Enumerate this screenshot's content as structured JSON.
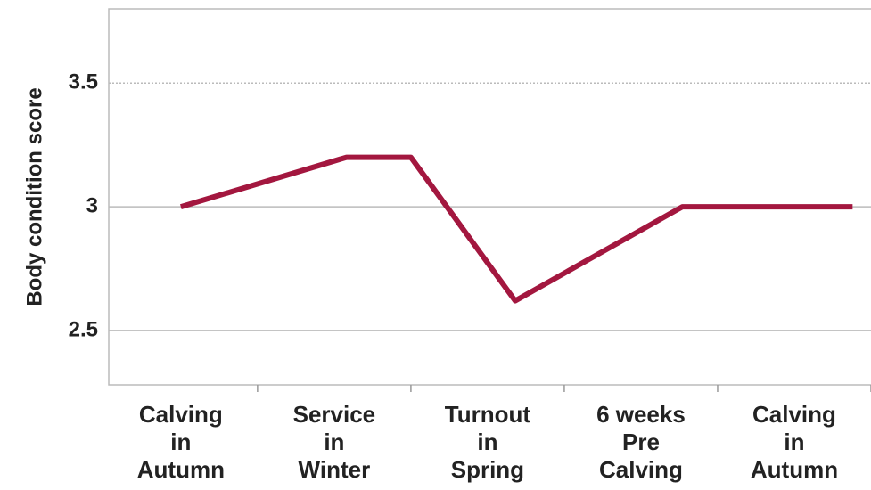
{
  "chart_data": {
    "type": "line",
    "y_label": "Body condition score",
    "x": [
      0,
      1.08,
      1.5,
      2.18,
      3.27,
      4.38
    ],
    "series": [
      {
        "color": "#a3173f",
        "values": [
          3.0,
          3.2,
          3.2,
          2.62,
          3.0,
          3.0
        ]
      }
    ],
    "xlim": [
      -0.47,
      4.5
    ],
    "xticks": [
      {
        "value": 0,
        "label": [
          "Calving",
          "in",
          "Autumn"
        ]
      },
      {
        "value": 1,
        "label": [
          "Service",
          "in",
          "Winter"
        ]
      },
      {
        "value": 2,
        "label": [
          "Turnout",
          "in",
          "Spring"
        ]
      },
      {
        "value": 3,
        "label": [
          "6 weeks",
          "Pre",
          "Calving"
        ]
      },
      {
        "value": 4,
        "label": [
          "Calving",
          "in",
          "Autumn"
        ]
      }
    ],
    "ylim": [
      2.28,
      3.8
    ],
    "yticks": [
      2.5,
      3,
      3.5
    ],
    "grid": true
  }
}
